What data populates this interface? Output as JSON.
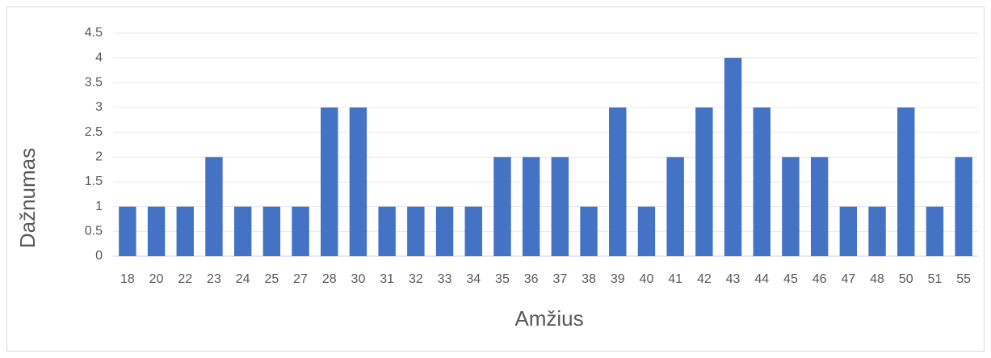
{
  "chart_data": {
    "type": "bar",
    "x_label": "Amžius",
    "y_label": "Dažnumas",
    "categories": [
      "18",
      "20",
      "22",
      "23",
      "24",
      "25",
      "27",
      "28",
      "30",
      "31",
      "32",
      "33",
      "34",
      "35",
      "36",
      "37",
      "38",
      "39",
      "40",
      "41",
      "42",
      "43",
      "44",
      "45",
      "46",
      "47",
      "48",
      "50",
      "51",
      "55"
    ],
    "values": [
      1,
      1,
      1,
      2,
      1,
      1,
      1,
      3,
      3,
      1,
      1,
      1,
      1,
      2,
      2,
      2,
      1,
      3,
      1,
      2,
      3,
      4,
      3,
      2,
      2,
      1,
      1,
      3,
      1,
      2
    ],
    "color": "#4472c4",
    "ylim": [
      0,
      4.5
    ],
    "yticks": [
      0,
      0.5,
      1,
      1.5,
      2,
      2.5,
      3,
      3.5,
      4,
      4.5
    ],
    "grid": true
  }
}
